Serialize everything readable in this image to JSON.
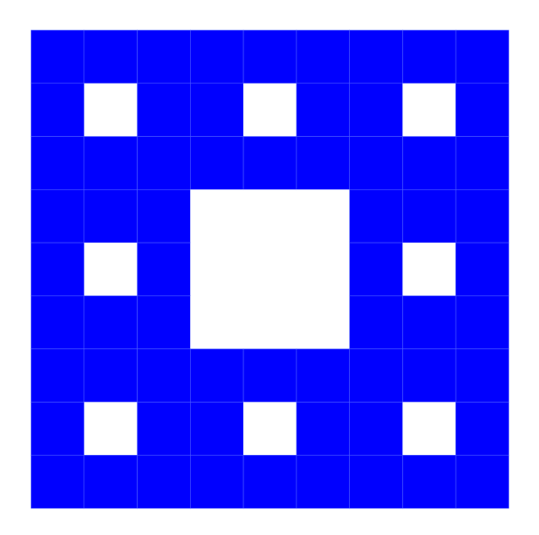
{
  "diagram": {
    "type": "sierpinski-carpet",
    "iterations": 2,
    "grid_cells_per_side": 9,
    "colors": {
      "background": "#ffffff",
      "filled": "#0000ff",
      "grid_line": "#4b5cff"
    }
  }
}
